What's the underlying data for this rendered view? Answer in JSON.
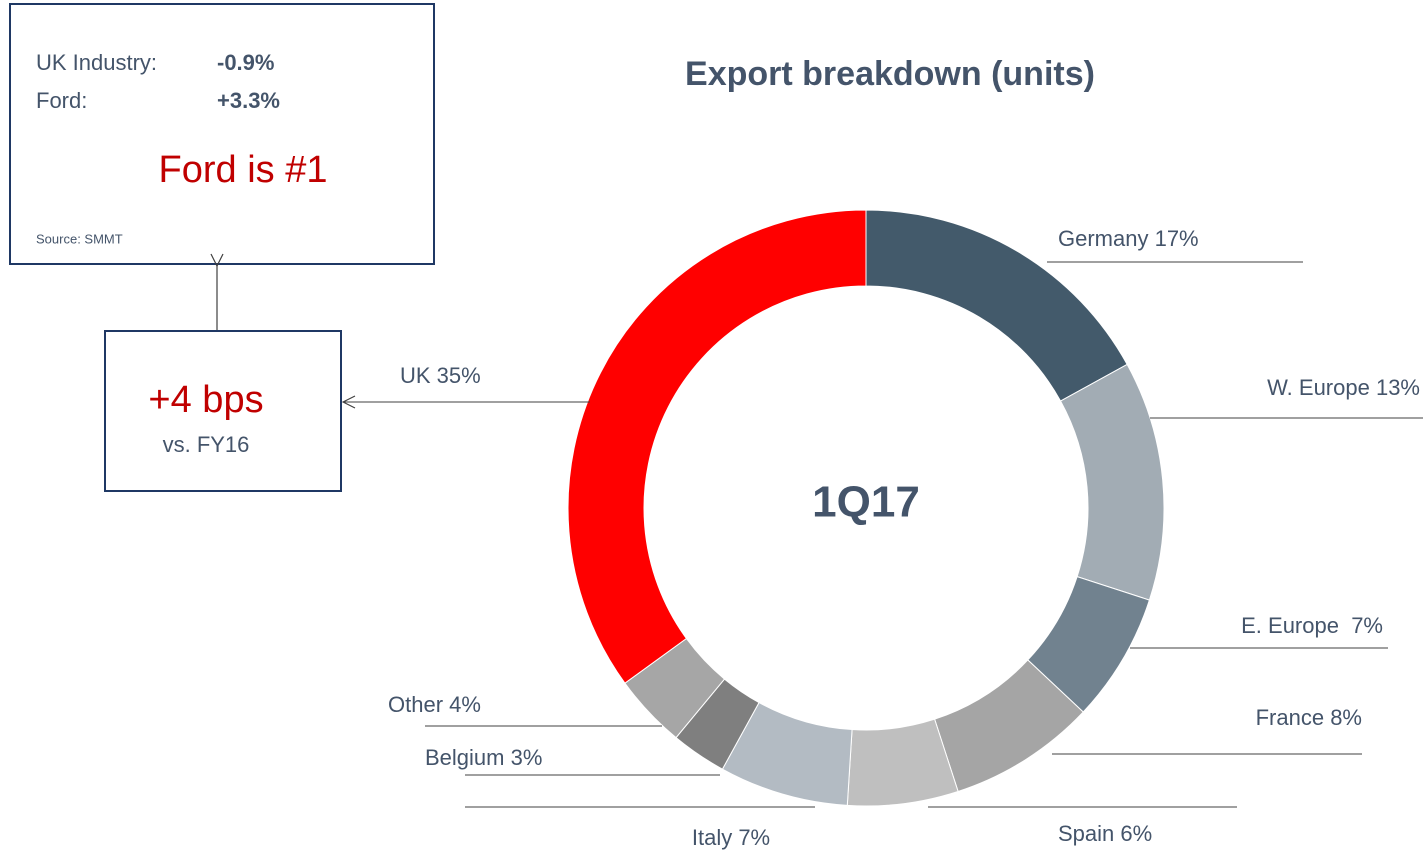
{
  "chart_data": {
    "type": "donut",
    "title": "Export breakdown (units)",
    "center_label": "1Q17",
    "values": [
      17,
      13,
      7,
      8,
      6,
      7,
      3,
      4,
      35
    ],
    "value_labels": [
      "Germany 17%",
      "W. Europe 13%",
      "E. Europe  7%",
      "France 8%",
      "Spain 6%",
      "Italy 7%",
      "Belgium 3%",
      "Other 4%",
      "UK 35%"
    ],
    "colors": [
      "#435a6b",
      "#a2acb4",
      "#71828f",
      "#a5a5a5",
      "#bfbfbf",
      "#b3bbc3",
      "#7f7f7f",
      "#a6a6a6",
      "#ff0000"
    ]
  },
  "callouts": {
    "market": {
      "rows": [
        [
          "UK Industry:",
          "-0.9%"
        ],
        [
          "Ford:",
          "+3.3%"
        ]
      ],
      "headline": "Ford is #1",
      "source": "Source: SMMT"
    },
    "share": {
      "headline": "+4 bps",
      "subline": "vs. FY16"
    }
  }
}
